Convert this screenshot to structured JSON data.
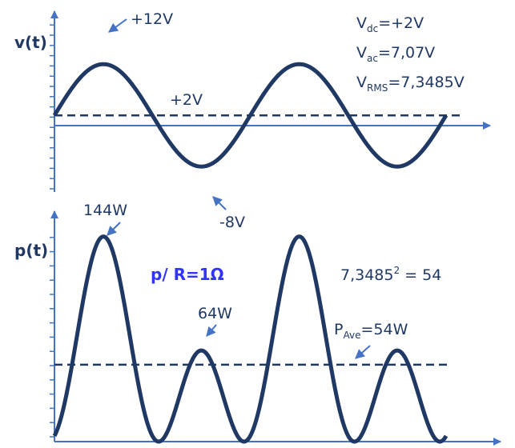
{
  "chart_data": [
    {
      "type": "line",
      "ylabel": "v(t)",
      "series": [
        {
          "name": "",
          "function": "2 + 10*sin(t)",
          "t_range": [
            "0",
            "4pi"
          ]
        }
      ],
      "reference_lines": [
        {
          "y": 2,
          "style": "dashed",
          "label": "+2V"
        }
      ],
      "annotations": [
        {
          "text": "+12V",
          "at": "peak"
        },
        {
          "text": "-8V",
          "at": "trough"
        }
      ],
      "info_lines": [
        {
          "base": "V",
          "sub": "dc",
          "rest": "=+2V"
        },
        {
          "base": "V",
          "sub": "ac",
          "rest": "=7,07V"
        },
        {
          "base": "V",
          "sub": "RMS",
          "rest": "=7,3485V"
        }
      ]
    },
    {
      "type": "line",
      "ylabel": "p(t)",
      "series": [
        {
          "name": "",
          "function": "(2 + 10*sin(t))^2",
          "t_range": [
            "0",
            "4pi"
          ]
        }
      ],
      "reference_lines": [
        {
          "y": 54,
          "style": "dashed"
        }
      ],
      "annotations": [
        {
          "text": "144W",
          "at": "major peak"
        },
        {
          "text": "64W",
          "at": "minor peak"
        }
      ],
      "resistance_note": "p/ R=1Ω",
      "rms_square": {
        "base": "7,3485",
        "exp": "2",
        "rest": " = 54"
      },
      "average": {
        "base": "P",
        "sub": "Ave",
        "rest": "=54W"
      }
    }
  ],
  "colors": {
    "curve": "#1f3864",
    "axis": "#4472c4",
    "text": "#1f3864",
    "arrow": "#4472c4",
    "accent": "#3333ff"
  }
}
